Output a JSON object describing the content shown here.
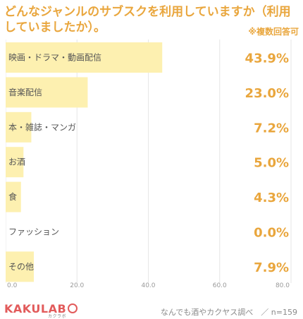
{
  "header": {
    "title": "どんなジャンルのサブスクを利用していますか（利用していましたか）。",
    "note": "※複数回答可"
  },
  "footer": {
    "logo": "KAKULAB",
    "logo_sub": "カクラボ",
    "source": "なんでも酒やカクヤス調べ　／ n=159"
  },
  "colors": {
    "bar": "#fdf0b0",
    "title": "#e9a63d",
    "value": "#e9a63d",
    "logo": "#e25b5b"
  },
  "chart_data": {
    "type": "bar",
    "orientation": "horizontal",
    "categories": [
      "映画・ドラマ・動画配信",
      "音楽配信",
      "本・雑誌・マンガ",
      "お酒",
      "食",
      "ファッション",
      "その他"
    ],
    "values": [
      43.9,
      23.0,
      7.2,
      5.0,
      4.3,
      0.0,
      7.9
    ],
    "value_labels": [
      "43.9%",
      "23.0%",
      "7.2%",
      "5.0%",
      "4.3%",
      "0.0%",
      "7.9%"
    ],
    "xlim": [
      0,
      80
    ],
    "xticks": [
      "0.0",
      "20.0",
      "40.0",
      "60.0",
      "80.0"
    ],
    "grid": true
  }
}
